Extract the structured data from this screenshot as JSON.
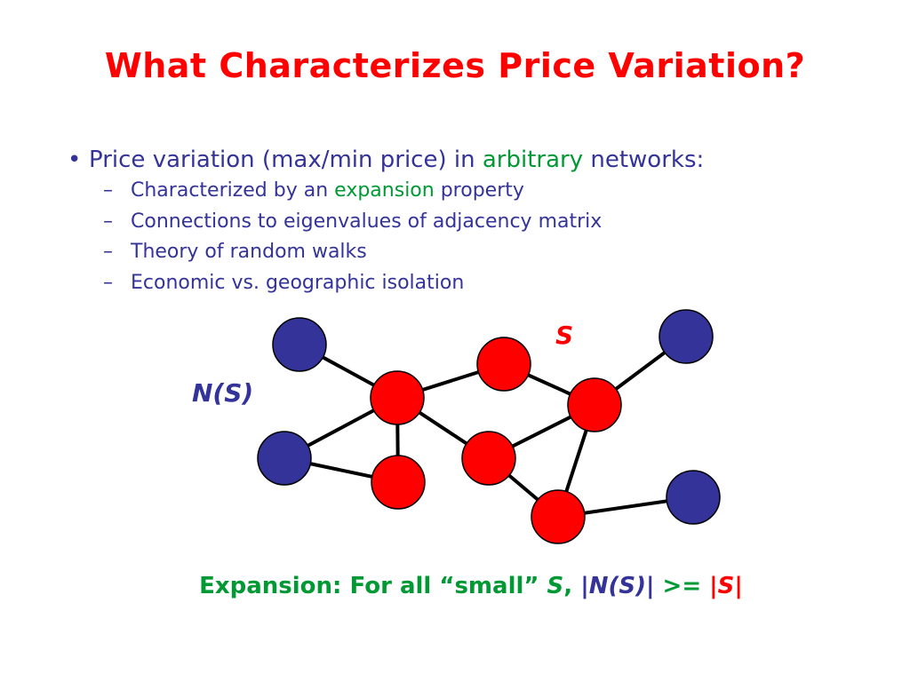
{
  "title": "What Characterizes Price Variation?",
  "bullets": {
    "main": {
      "marker": "•",
      "prefix": "Price variation (max/min price) in ",
      "highlight": "arbitrary",
      "suffix": " networks:"
    },
    "subs": [
      {
        "marker": "–",
        "prefix": "Characterized by an ",
        "highlight": "expansion",
        "suffix": " property"
      },
      {
        "marker": "–",
        "text": "Connections to eigenvalues of adjacency matrix"
      },
      {
        "marker": "–",
        "text": "Theory of random walks"
      },
      {
        "marker": "–",
        "text": "Economic vs. geographic isolation"
      }
    ]
  },
  "diagram": {
    "label_neighbors": "N(S)",
    "label_set": "S",
    "colors": {
      "set_node": "#ff0000",
      "neighbor_node": "#333399",
      "edge": "#000000",
      "node_outline": "#000000"
    },
    "nodes": [
      {
        "id": "b1",
        "group": "neighbor"
      },
      {
        "id": "b2",
        "group": "neighbor"
      },
      {
        "id": "b3",
        "group": "neighbor"
      },
      {
        "id": "b4",
        "group": "neighbor"
      },
      {
        "id": "r1",
        "group": "set"
      },
      {
        "id": "r2",
        "group": "set"
      },
      {
        "id": "r3",
        "group": "set"
      },
      {
        "id": "r4",
        "group": "set"
      },
      {
        "id": "r5",
        "group": "set"
      },
      {
        "id": "r6",
        "group": "set"
      }
    ],
    "edges": [
      [
        "b1",
        "r1"
      ],
      [
        "r1",
        "r2"
      ],
      [
        "r2",
        "r3"
      ],
      [
        "r3",
        "b2"
      ],
      [
        "r1",
        "b3"
      ],
      [
        "b3",
        "r4"
      ],
      [
        "r1",
        "r4"
      ],
      [
        "r1",
        "r5"
      ],
      [
        "r5",
        "r3"
      ],
      [
        "r5",
        "r6"
      ],
      [
        "r3",
        "r6"
      ],
      [
        "r6",
        "b4"
      ]
    ]
  },
  "footer": {
    "prefix": "Expansion: For all “small” ",
    "set_symbol": "S",
    "comma": ",",
    "bar_open": "|",
    "neighbors_symbol": "N(S)",
    "bar_close": "|",
    "operator": " >= ",
    "set_bar_open": "|",
    "set_symbol_2": "S",
    "set_bar_close": "|"
  }
}
